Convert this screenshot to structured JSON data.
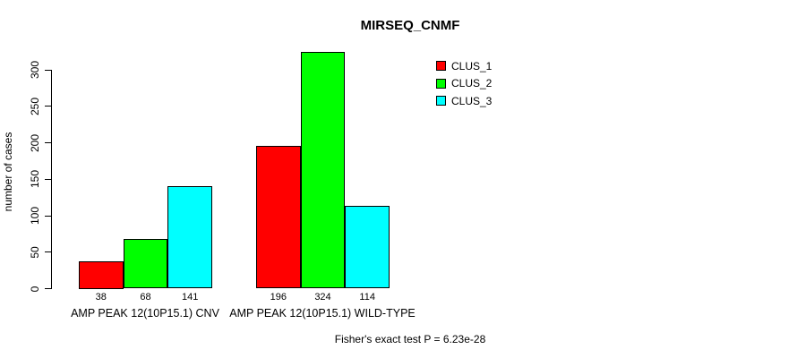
{
  "chart_data": {
    "type": "bar",
    "title": "MIRSEQ_CNMF",
    "ylabel": "number of cases",
    "xlabel": "",
    "categories": [
      "AMP PEAK 12(10P15.1) CNV",
      "AMP PEAK 12(10P15.1) WILD-TYPE"
    ],
    "series": [
      {
        "name": "CLUS_1",
        "color": "#FF0000",
        "values": [
          38,
          196
        ]
      },
      {
        "name": "CLUS_2",
        "color": "#00FF00",
        "values": [
          68,
          324
        ]
      },
      {
        "name": "CLUS_3",
        "color": "#00FFFF",
        "values": [
          141,
          114
        ]
      }
    ],
    "bar_value_labels": [
      [
        38,
        68,
        141
      ],
      [
        196,
        324,
        114
      ]
    ],
    "y_ticks": [
      0,
      50,
      100,
      150,
      200,
      250,
      300
    ],
    "ylim": [
      0,
      324
    ],
    "grid": false,
    "legend_position": "top-right",
    "annotation": "Fisher's exact test P = 6.23e-28"
  }
}
